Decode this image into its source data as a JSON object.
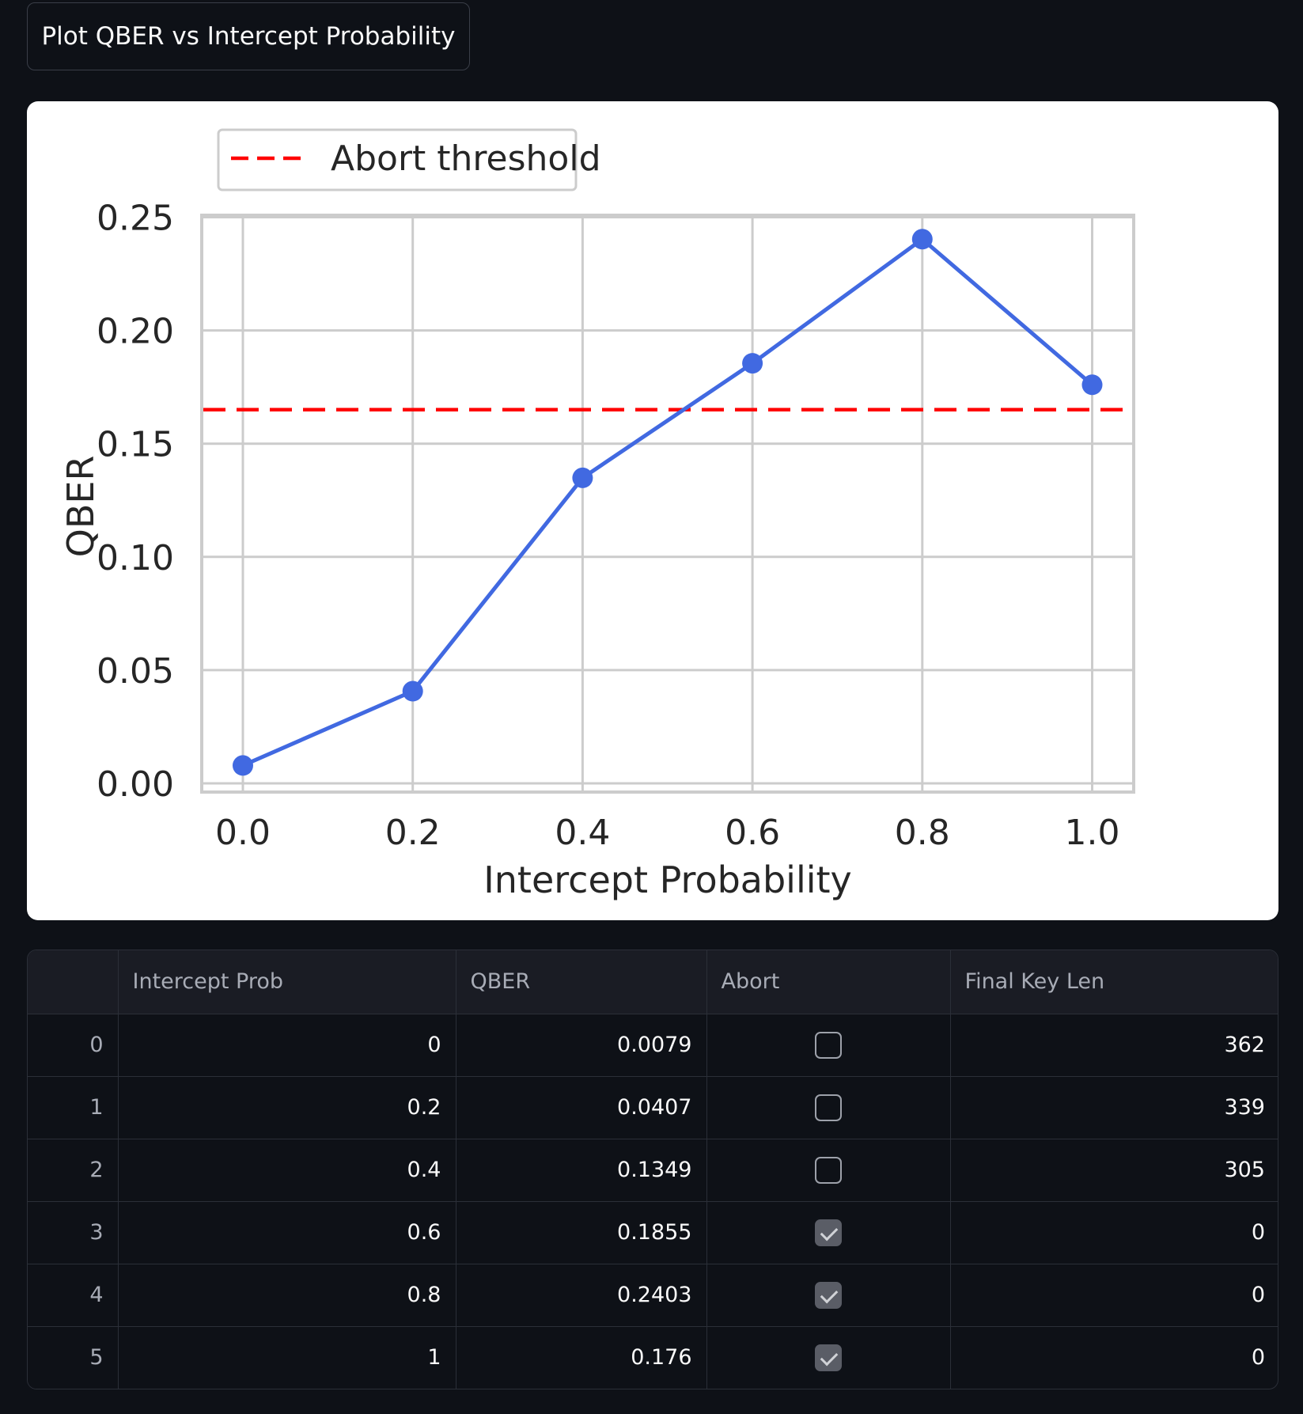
{
  "button": {
    "label": "Plot QBER vs Intercept Probability"
  },
  "chart_data": {
    "type": "line",
    "xlabel": "Intercept Probability",
    "ylabel": "QBER",
    "xlim": [
      -0.09,
      1.0
    ],
    "ylim": [
      -0.004,
      0.25
    ],
    "xticks": [
      "0.0",
      "0.2",
      "0.4",
      "0.6",
      "0.8",
      "1.0"
    ],
    "yticks": [
      "0.00",
      "0.05",
      "0.10",
      "0.15",
      "0.20",
      "0.25"
    ],
    "grid": true,
    "legend_position": "top-left",
    "series": [
      {
        "x": [
          0,
          0.2,
          0.4,
          0.6,
          0.8,
          1.0
        ],
        "values": [
          0.0079,
          0.0407,
          0.1349,
          0.1855,
          0.2403,
          0.176
        ],
        "color": "#4169e1",
        "marker": "circle"
      }
    ],
    "threshold": {
      "name": "Abort threshold",
      "y": 0.165,
      "color": "#ff0000",
      "style": "dashed"
    }
  },
  "table": {
    "columns": [
      "",
      "Intercept Prob",
      "QBER",
      "Abort",
      "Final Key Len"
    ],
    "rows": [
      {
        "index": "0",
        "intercept_prob": "0",
        "qber": "0.0079",
        "abort": false,
        "final_key_len": "362"
      },
      {
        "index": "1",
        "intercept_prob": "0.2",
        "qber": "0.0407",
        "abort": false,
        "final_key_len": "339"
      },
      {
        "index": "2",
        "intercept_prob": "0.4",
        "qber": "0.1349",
        "abort": false,
        "final_key_len": "305"
      },
      {
        "index": "3",
        "intercept_prob": "0.6",
        "qber": "0.1855",
        "abort": true,
        "final_key_len": "0"
      },
      {
        "index": "4",
        "intercept_prob": "0.8",
        "qber": "0.2403",
        "abort": true,
        "final_key_len": "0"
      },
      {
        "index": "5",
        "intercept_prob": "1",
        "qber": "0.176",
        "abort": true,
        "final_key_len": "0"
      }
    ]
  },
  "colors": {
    "background": "#0e1117",
    "accent_line": "#4169e1",
    "threshold": "#ff0000"
  }
}
